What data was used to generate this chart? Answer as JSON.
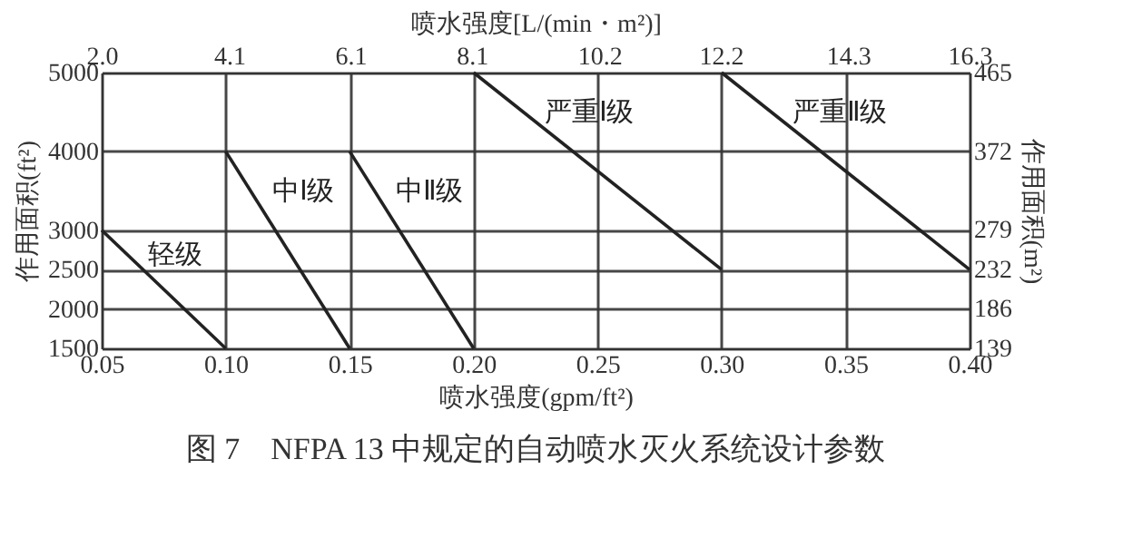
{
  "chart_data": {
    "type": "line",
    "xlabel": "喷水强度(gpm/ft²)",
    "x2label": "喷水强度[L/(min・m²)]",
    "ylabel": "作用面积(ft²)",
    "y2label": "作用面积(m²)",
    "xlim": [
      0.05,
      0.4
    ],
    "xticks": [
      0.05,
      {
        "value": 0.1,
        "label": "0.10"
      },
      0.15,
      {
        "value": 0.2,
        "label": "0.20"
      },
      0.25,
      {
        "value": 0.3,
        "label": "0.30"
      },
      0.35,
      {
        "value": 0.4,
        "label": "0.40"
      }
    ],
    "x2lim": [
      2.0,
      16.3
    ],
    "x2ticks": [
      {
        "value": 2,
        "label": "2.0"
      },
      4.1,
      6.1,
      8.1,
      10.2,
      12.2,
      14.3,
      16.3
    ],
    "ylim": [
      1500,
      5000
    ],
    "yticks": [
      1500,
      2000,
      2500,
      3000,
      4000,
      5000
    ],
    "y2lim": [
      139,
      465
    ],
    "y2ticks": [
      139,
      186,
      232,
      279,
      372,
      465
    ],
    "grid": true,
    "marker": "none",
    "line_style": "solid",
    "series": [
      {
        "name": "轻级",
        "color": "#222222",
        "x": [
          0.05,
          0.1
        ],
        "values": [
          3000,
          1500
        ]
      },
      {
        "name": "中Ⅰ级",
        "color": "#222222",
        "x": [
          0.1,
          0.15
        ],
        "values": [
          4000,
          1500
        ]
      },
      {
        "name": "中Ⅱ级",
        "color": "#222222",
        "x": [
          0.15,
          0.2
        ],
        "values": [
          4000,
          1500
        ]
      },
      {
        "name": "严重Ⅰ级",
        "color": "#222222",
        "x": [
          0.2,
          0.3
        ],
        "values": [
          5000,
          2500
        ]
      },
      {
        "name": "严重Ⅱ级",
        "color": "#222222",
        "x": [
          0.3,
          0.4
        ],
        "values": [
          5000,
          2500
        ]
      }
    ],
    "annotations": [
      "图 7　NFPA 13 中规定的自动喷水灭火系统设计参数"
    ]
  }
}
